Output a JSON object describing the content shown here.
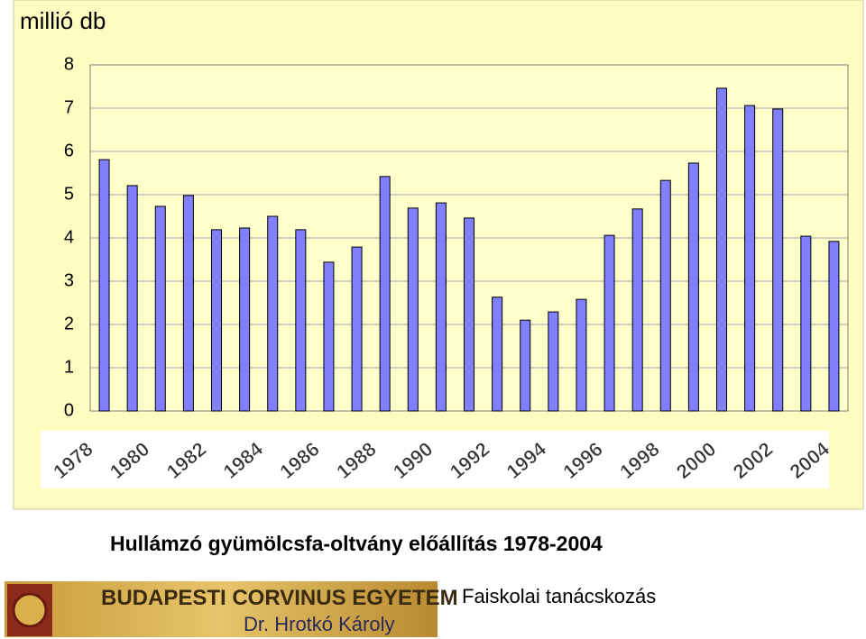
{
  "chart_data": {
    "type": "bar",
    "title": "Hullámzó gyümölcsfa-oltvány előállítás 1978-2004",
    "y_label": "millió db",
    "categories": [
      "1978",
      null,
      "1980",
      null,
      "1982",
      null,
      "1984",
      null,
      "1986",
      null,
      "1988",
      null,
      "1990",
      null,
      "1992",
      null,
      "1994",
      null,
      "1996",
      null,
      "1998",
      null,
      "2000",
      null,
      "2002",
      null,
      "2004"
    ],
    "values": [
      5.81,
      5.21,
      4.73,
      4.98,
      4.19,
      4.23,
      4.5,
      4.19,
      3.44,
      3.79,
      5.42,
      4.69,
      4.81,
      4.46,
      2.63,
      2.1,
      2.29,
      2.58,
      4.06,
      4.67,
      5.33,
      5.73,
      7.46,
      7.06,
      6.98,
      4.04,
      3.92
    ],
    "color": "#8080ff",
    "ylim": [
      0,
      8
    ],
    "yticks": [
      0,
      1,
      2,
      3,
      4,
      5,
      6,
      7,
      8
    ],
    "grid": true
  },
  "footer": {
    "university": "BUDAPESTI CORVINUS EGYETEM",
    "author": "Dr. Hrotkó Károly",
    "event": "Faiskolai tanácskozás"
  }
}
